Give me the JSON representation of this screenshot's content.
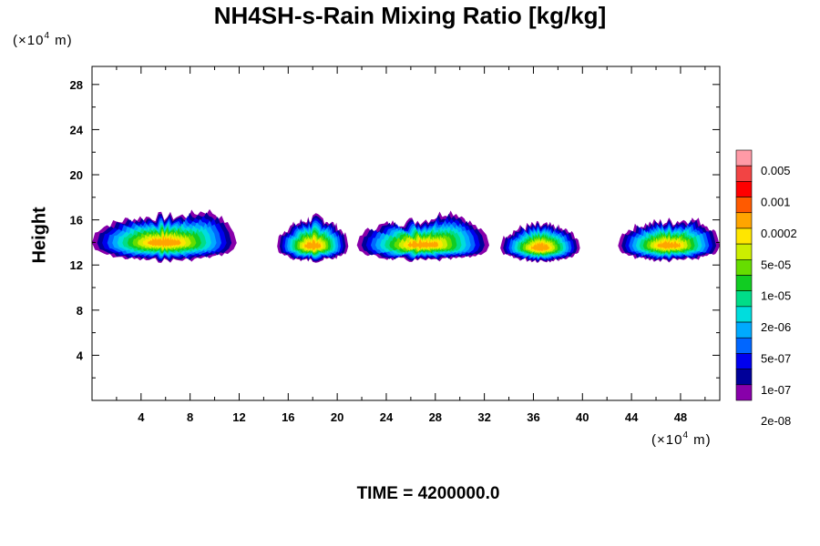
{
  "chart_data": {
    "type": "contour",
    "title": "NH4SH-s-Rain Mixing Ratio [kg/kg]",
    "ylabel": "Height",
    "y_unit": {
      "prefix": "(×10",
      "exp": "4",
      "suffix": " m)"
    },
    "x_unit": {
      "prefix": "(×10",
      "exp": "4",
      "suffix": " m)"
    },
    "xlim": [
      0,
      51.2
    ],
    "ylim": [
      0,
      29.6
    ],
    "x_ticks": [
      4,
      8,
      12,
      16,
      20,
      24,
      28,
      32,
      36,
      40,
      44,
      48
    ],
    "y_ticks": [
      4,
      8,
      12,
      16,
      20,
      24,
      28
    ],
    "colorbar": {
      "labels": [
        "0.005",
        "0.001",
        "0.0002",
        "5e-05",
        "1e-05",
        "2e-06",
        "5e-07",
        "1e-07",
        "2e-08"
      ],
      "colors": [
        "#ff9aa6",
        "#f24444",
        "#ff0000",
        "#ff5a00",
        "#ffa500",
        "#ffe600",
        "#ccee00",
        "#66dd00",
        "#11cc22",
        "#00dd88",
        "#00dddd",
        "#00aaff",
        "#0066ff",
        "#0000ee",
        "#000099",
        "#8800aa"
      ]
    },
    "clusters": [
      {
        "x0": 0,
        "x1": 11.8,
        "base": 12.4,
        "top": 16.3,
        "peak_x": 9.8,
        "peak_top": 17.4
      },
      {
        "x0": 15.1,
        "x1": 20.9,
        "base": 12.4,
        "top": 15.7,
        "peak_x": 18.5,
        "peak_top": 16.2
      },
      {
        "x0": 21.6,
        "x1": 32.4,
        "base": 12.4,
        "top": 15.9,
        "peak_x": 29.5,
        "peak_top": 17.0
      },
      {
        "x0": 33.3,
        "x1": 39.8,
        "base": 12.4,
        "top": 15.4,
        "peak_x": 36.0,
        "peak_top": 15.5
      },
      {
        "x0": 42.9,
        "x1": 51.2,
        "base": 12.4,
        "top": 15.8,
        "peak_x": 49.5,
        "peak_top": 16.3
      }
    ],
    "time": "TIME = 4200000.0"
  }
}
